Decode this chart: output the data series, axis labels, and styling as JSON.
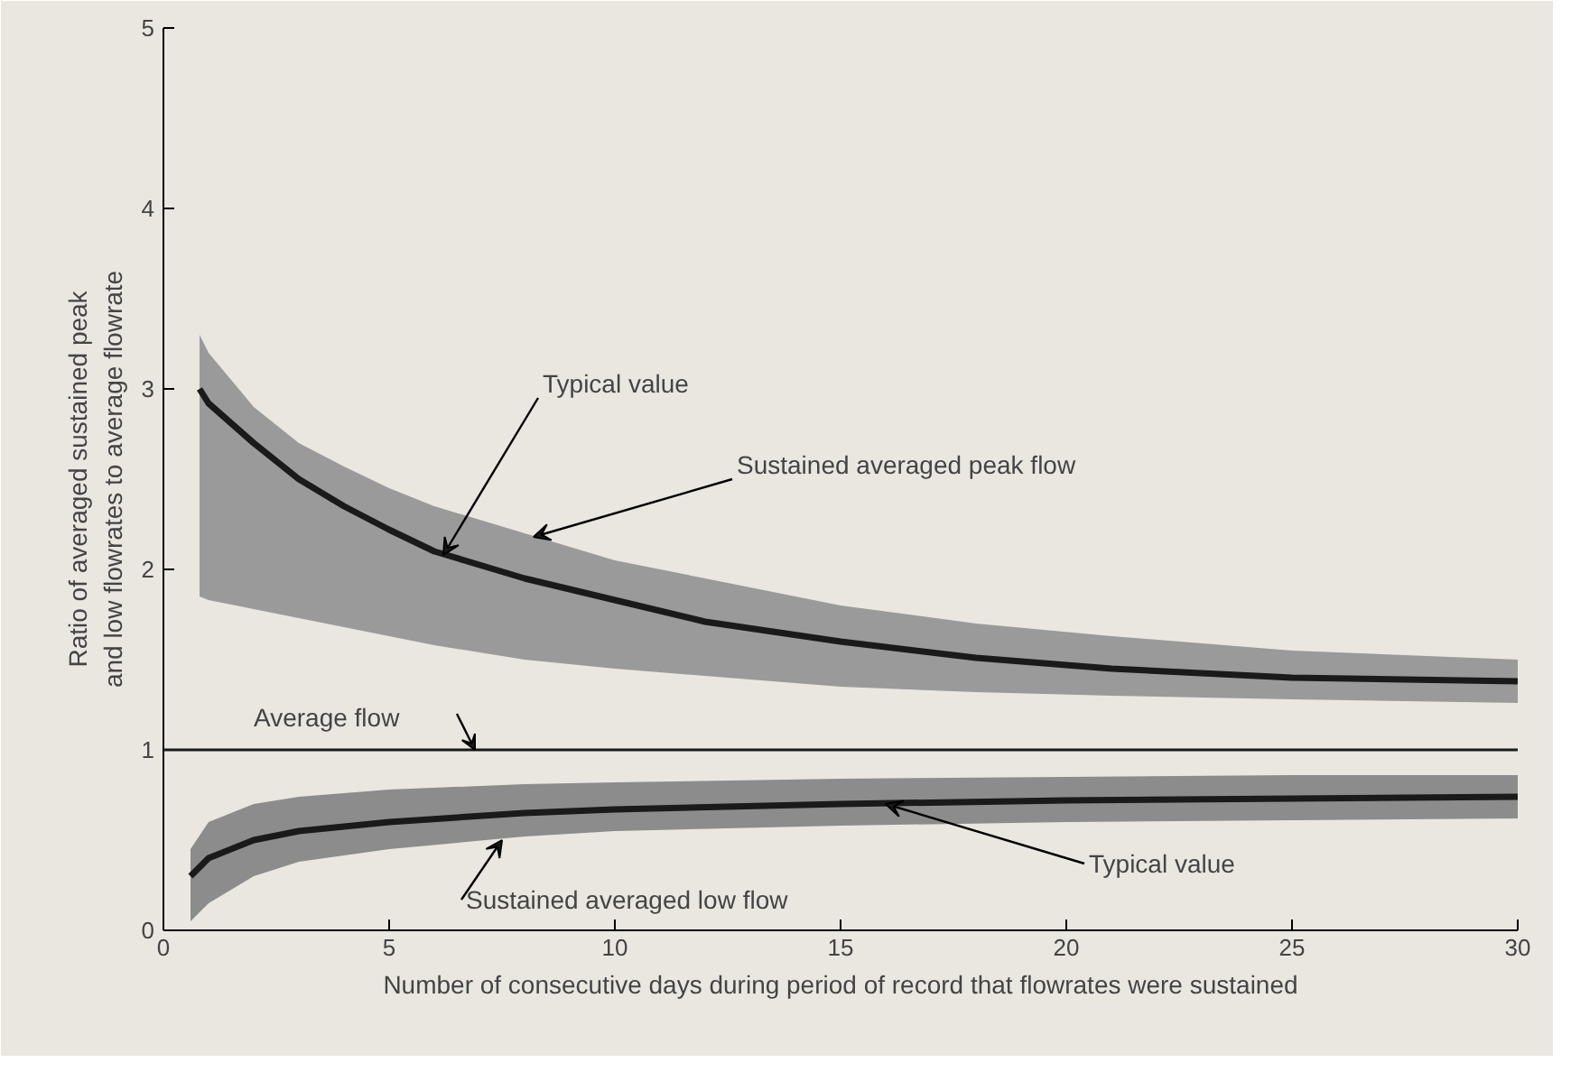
{
  "chart_data": {
    "type": "line",
    "xlabel": "Number of consecutive days during period of record that flowrates were sustained",
    "ylabel": "Ratio of averaged sustained peak\nand low flowrates to average flowrate",
    "xlim": [
      0,
      30
    ],
    "ylim": [
      0,
      5
    ],
    "xticks": [
      0,
      5,
      10,
      15,
      20,
      25,
      30
    ],
    "yticks": [
      0,
      1,
      2,
      3,
      4,
      5
    ],
    "marker": "none",
    "line_style": "solid",
    "series": [
      {
        "color": "#1a1a1a",
        "x": [
          0.8,
          1,
          2,
          3,
          4,
          5,
          6,
          8,
          10,
          12,
          15,
          18,
          21,
          25,
          30
        ],
        "values": [
          3.0,
          2.92,
          2.7,
          2.5,
          2.35,
          2.22,
          2.1,
          1.95,
          1.83,
          1.71,
          1.6,
          1.51,
          1.45,
          1.4,
          1.38
        ],
        "lower": [
          1.85,
          1.83,
          1.78,
          1.73,
          1.68,
          1.63,
          1.58,
          1.5,
          1.45,
          1.41,
          1.35,
          1.32,
          1.3,
          1.28,
          1.26
        ],
        "upper": [
          3.3,
          3.2,
          2.9,
          2.7,
          2.57,
          2.45,
          2.35,
          2.2,
          2.05,
          1.95,
          1.8,
          1.7,
          1.63,
          1.55,
          1.5
        ]
      },
      {
        "color": "#1a1a1a",
        "x": [
          0.6,
          1,
          2,
          3,
          5,
          8,
          10,
          15,
          20,
          25,
          30
        ],
        "values": [
          0.3,
          0.4,
          0.5,
          0.55,
          0.6,
          0.65,
          0.67,
          0.7,
          0.72,
          0.73,
          0.74
        ],
        "lower": [
          0.05,
          0.15,
          0.3,
          0.38,
          0.45,
          0.52,
          0.55,
          0.58,
          0.6,
          0.61,
          0.62
        ],
        "upper": [
          0.45,
          0.6,
          0.7,
          0.74,
          0.78,
          0.81,
          0.82,
          0.84,
          0.85,
          0.86,
          0.86
        ]
      }
    ],
    "ref_lines": [
      {
        "axis": "y",
        "value": 1,
        "label": "Average flow",
        "color": "#1a1a1a",
        "line_style": "solid"
      }
    ],
    "annotations": [
      {
        "text": "Typical value",
        "x": 6.2,
        "y": 2.08
      },
      {
        "text": "Sustained averaged peak flow",
        "x": 8.2,
        "y": 2.18
      },
      {
        "text": "Sustained averaged low flow",
        "x": 7.5,
        "y": 0.5
      },
      {
        "text": "Typical value",
        "x": 16,
        "y": 0.7
      }
    ]
  }
}
